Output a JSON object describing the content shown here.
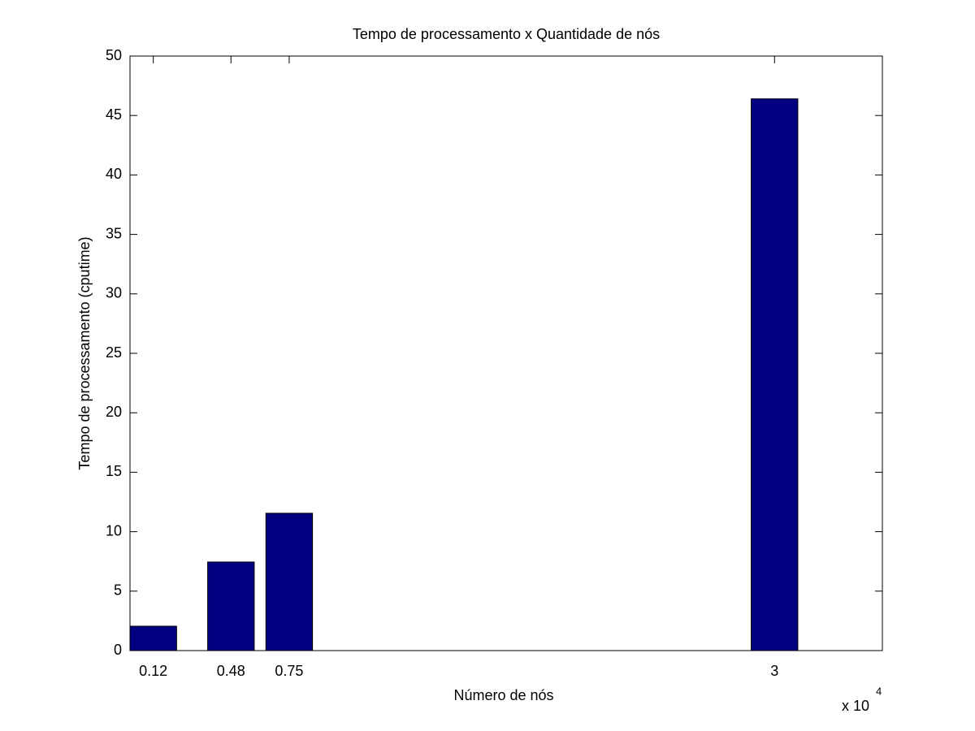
{
  "chart_data": {
    "type": "bar",
    "title": "Tempo de processamento x Quantidade de nós",
    "x_label": "Número de nós",
    "y_label": "Tempo de processamento (cputime)",
    "x_multiplier": "x 10",
    "x_exponent": "4",
    "x": [
      0.12,
      0.48,
      0.75,
      3
    ],
    "values": [
      2.05,
      7.45,
      11.55,
      46.4
    ],
    "color": "#000080",
    "xlim": [
      0.012,
      3.5
    ],
    "xticks": [
      0.12,
      0.48,
      0.75,
      3
    ],
    "ylim": [
      0,
      50
    ],
    "yticks": [
      0,
      5,
      10,
      15,
      20,
      25,
      30,
      35,
      40,
      45,
      50
    ],
    "grid": false
  }
}
